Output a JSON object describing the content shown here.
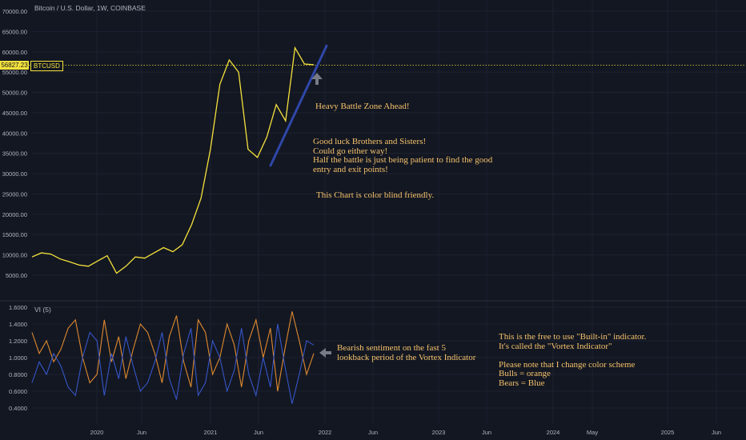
{
  "header": {
    "title": "Bitcoin / U.S. Dollar, 1W, COINBASE"
  },
  "price_tag": {
    "value": "56827.23",
    "symbol": "BTCUSD"
  },
  "indicator": {
    "label": "VI (5)"
  },
  "annotations": {
    "battle": "Heavy Battle Zone Ahead!",
    "luck": "Good luck Brothers and Sisters!\nCould go either way!\nHalf the battle is just being patient to find the good\nentry and exit points!",
    "colorblind": "This Chart is color blind friendly.",
    "bearish": "Bearish sentiment on the fast 5\nlookback period of the Vortex Indicator",
    "indicator_note": "This is the free to use \"Built-in\" indicator.\nIt's called the \"Vortex Indicator\"\n\nPlease note that I change color scheme\nBulls = orange\nBears = Blue"
  },
  "colors": {
    "background": "#131722",
    "price_line": "#f5e23c",
    "trendline": "#2f47a8",
    "vi_plus": "#e08a2e",
    "vi_minus": "#3556c8",
    "annotation": "#f5c26b",
    "arrow": "#787b86",
    "grid": "#1e2230"
  },
  "chart_data": [
    {
      "type": "line",
      "title": "Bitcoin / U.S. Dollar, 1W, COINBASE",
      "x_ticks": [
        "2020",
        "Jun",
        "2021",
        "Jun",
        "2022",
        "Jun",
        "2023",
        "Jun",
        "2024",
        "May",
        "2025",
        "Jun"
      ],
      "y_ticks": [
        "5000.00",
        "10000.00",
        "15000.00",
        "20000.00",
        "25000.00",
        "30000.00",
        "35000.00",
        "40000.00",
        "45000.00",
        "50000.00",
        "55000.00",
        "60000.00",
        "65000.00",
        "70000.00"
      ],
      "ylim": [
        2500,
        70000
      ],
      "x": [
        "2019-06",
        "2019-07",
        "2019-08",
        "2019-09",
        "2019-10",
        "2019-11",
        "2019-12",
        "2020-01",
        "2020-02",
        "2020-03",
        "2020-04",
        "2020-05",
        "2020-06",
        "2020-07",
        "2020-08",
        "2020-09",
        "2020-10",
        "2020-11",
        "2020-12",
        "2021-01",
        "2021-02",
        "2021-03",
        "2021-04",
        "2021-05",
        "2021-06",
        "2021-07",
        "2021-08",
        "2021-09",
        "2021-10",
        "2021-11",
        "2021-12"
      ],
      "series": [
        {
          "name": "BTCUSD",
          "values": [
            9500,
            10500,
            10200,
            9000,
            8300,
            7500,
            7200,
            8500,
            9800,
            5500,
            7200,
            9500,
            9200,
            10500,
            11800,
            10800,
            12500,
            17500,
            24000,
            36000,
            52000,
            58000,
            55000,
            36000,
            34000,
            39000,
            47000,
            43000,
            61000,
            57000,
            56827
          ]
        }
      ],
      "current_price": 56827.23,
      "trendline": {
        "from": [
          "2021-07",
          32000
        ],
        "to": [
          "2021-12",
          61500
        ]
      }
    },
    {
      "type": "line",
      "title": "VI (5)",
      "y_ticks": [
        "0.4000",
        "0.6000",
        "0.8000",
        "1.0000",
        "1.2000",
        "1.4000",
        "1.6000"
      ],
      "ylim": [
        0.3,
        1.65
      ],
      "series": [
        {
          "name": "VI+",
          "values": [
            1.3,
            1.05,
            1.2,
            0.95,
            1.1,
            1.35,
            1.45,
            1.0,
            0.7,
            0.8,
            1.45,
            0.95,
            1.25,
            0.75,
            1.1,
            1.4,
            1.3,
            1.05,
            0.7,
            1.25,
            1.5,
            0.95,
            0.65,
            1.45,
            1.3,
            0.8,
            1.0,
            1.4,
            1.15,
            0.65,
            1.2,
            1.45,
            1.0,
            1.35,
            0.6,
            1.1,
            1.55,
            1.2,
            0.8,
            1.05
          ]
        },
        {
          "name": "VI-",
          "values": [
            0.7,
            0.95,
            0.8,
            1.05,
            0.9,
            0.65,
            0.55,
            1.0,
            1.3,
            1.2,
            0.55,
            1.05,
            0.75,
            1.25,
            0.9,
            0.6,
            0.7,
            0.95,
            1.3,
            0.75,
            0.5,
            1.05,
            1.35,
            0.55,
            0.7,
            1.2,
            1.0,
            0.6,
            0.85,
            1.35,
            0.8,
            0.55,
            1.0,
            0.65,
            1.4,
            0.9,
            0.45,
            0.8,
            1.2,
            1.15
          ]
        }
      ]
    }
  ]
}
